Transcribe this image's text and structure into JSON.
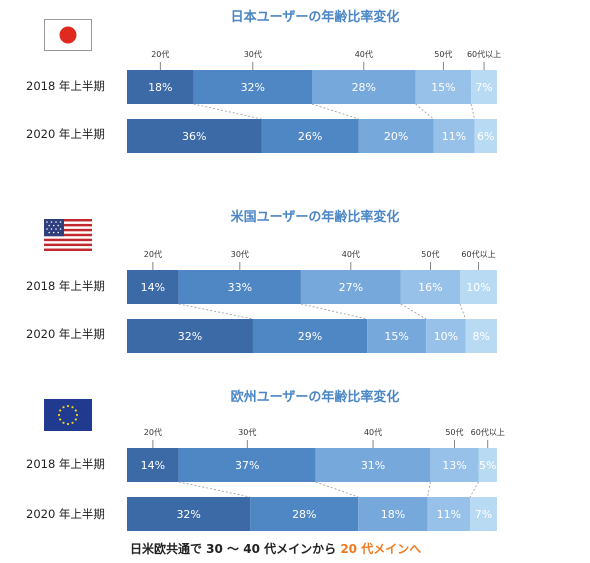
{
  "chart_data": [
    {
      "type": "bar",
      "title": "日本ユーザーの年齢比率変化",
      "flag": "japan-flag",
      "categories": [
        "2018 年上半期",
        "2020 年上半期"
      ],
      "series": [
        {
          "name": "20代",
          "values": [
            18,
            36
          ]
        },
        {
          "name": "30代",
          "values": [
            32,
            26
          ]
        },
        {
          "name": "40代",
          "values": [
            28,
            20
          ]
        },
        {
          "name": "50代",
          "values": [
            15,
            11
          ]
        },
        {
          "name": "60代以上",
          "values": [
            7,
            6
          ]
        }
      ],
      "value_unit": "%",
      "colors": [
        "#3c6aa6",
        "#4f86c4",
        "#76a8dc",
        "#98c1ea",
        "#b9daf3"
      ]
    },
    {
      "type": "bar",
      "title": "米国ユーザーの年齢比率変化",
      "flag": "us-flag",
      "categories": [
        "2018 年上半期",
        "2020 年上半期"
      ],
      "series": [
        {
          "name": "20代",
          "values": [
            14,
            32
          ]
        },
        {
          "name": "30代",
          "values": [
            33,
            29
          ]
        },
        {
          "name": "40代",
          "values": [
            27,
            15
          ]
        },
        {
          "name": "50代",
          "values": [
            16,
            10
          ]
        },
        {
          "name": "60代以上",
          "values": [
            10,
            8
          ]
        }
      ],
      "value_unit": "%",
      "colors": [
        "#3c6aa6",
        "#4f86c4",
        "#76a8dc",
        "#98c1ea",
        "#b9daf3"
      ]
    },
    {
      "type": "bar",
      "title": "欧州ユーザーの年齢比率変化",
      "flag": "eu-flag",
      "categories": [
        "2018 年上半期",
        "2020 年上半期"
      ],
      "series": [
        {
          "name": "20代",
          "values": [
            14,
            32
          ]
        },
        {
          "name": "30代",
          "values": [
            37,
            28
          ]
        },
        {
          "name": "40代",
          "values": [
            31,
            18
          ]
        },
        {
          "name": "50代",
          "values": [
            13,
            11
          ]
        },
        {
          "name": "60代以上",
          "values": [
            5,
            7
          ]
        }
      ],
      "value_unit": "%",
      "colors": [
        "#3c6aa6",
        "#4f86c4",
        "#76a8dc",
        "#98c1ea",
        "#b9daf3"
      ]
    }
  ],
  "footer": {
    "text_main": "日米欧共通で 30 〜 40 代メインから",
    "text_highlight": "20 代メインへ",
    "highlight_color": "#f07a20"
  }
}
